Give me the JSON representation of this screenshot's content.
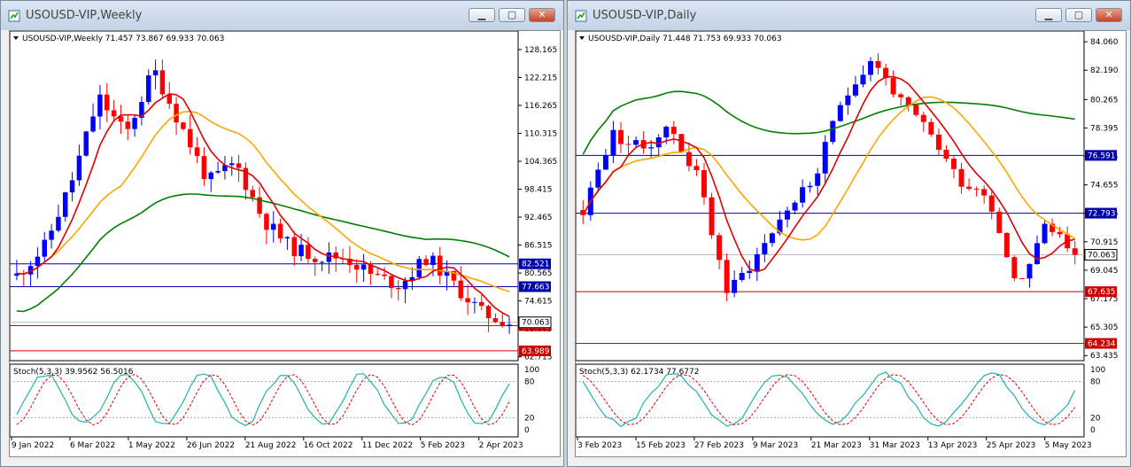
{
  "windows": [
    {
      "title": "USOUSD-VIP,Weekly",
      "info": "USOUSD-VIP,Weekly  71.457 73.867 69.933 70.063",
      "stoch_label": "Stoch(5,3,3) 39.9562 56.5016",
      "price_axis": [
        "128.165",
        "122.215",
        "116.265",
        "110.315",
        "104.365",
        "98.415",
        "92.465",
        "86.515",
        "80.565",
        "74.615",
        "68.665",
        "62.715"
      ],
      "stoch_axis": [
        "100",
        "80",
        "20",
        "0"
      ],
      "hlines": [
        {
          "price": 82.521,
          "color": "#0000aa",
          "label": "82.521"
        },
        {
          "price": 77.663,
          "color": "#0000aa",
          "label": "77.663"
        },
        {
          "price": 69.351,
          "color": "#cc0000",
          "label": "69.351"
        },
        {
          "price": 63.989,
          "color": "#cc0000",
          "label": "63.989"
        }
      ],
      "current_price": {
        "price": 70.063,
        "label": "70.063"
      },
      "date_axis": [
        "9 Jan 2022",
        "6 Mar 2022",
        "1 May 2022",
        "26 Jun 2022",
        "21 Aug 2022",
        "16 Oct 2022",
        "11 Dec 2022",
        "5 Feb 2023",
        "2 Apr 2023"
      ]
    },
    {
      "title": "USOUSD-VIP,Daily",
      "info": "USOUSD-VIP,Daily  71.448 71.753 69.933 70.063",
      "stoch_label": "Stoch(5,3,3) 62.1734 77.6772",
      "price_axis": [
        "84.060",
        "82.190",
        "80.265",
        "78.395",
        "76.525",
        "74.655",
        "72.785",
        "70.915",
        "69.045",
        "67.175",
        "65.305",
        "63.435"
      ],
      "stoch_axis": [
        "100",
        "80",
        "20",
        "0"
      ],
      "hlines": [
        {
          "price": 76.591,
          "color": "#0000aa",
          "label": "76.591"
        },
        {
          "price": 72.793,
          "color": "#0000aa",
          "label": "72.793"
        },
        {
          "price": 67.635,
          "color": "#cc0000",
          "label": "67.635"
        },
        {
          "price": 64.234,
          "color": "#cc0000",
          "label": "64.234"
        }
      ],
      "current_price": {
        "price": 70.063,
        "label": "70.063"
      },
      "date_axis": [
        "3 Feb 2023",
        "15 Feb 2023",
        "27 Feb 2023",
        "9 Mar 2023",
        "21 Mar 2023",
        "31 Mar 2023",
        "13 Apr 2023",
        "25 Apr 2023",
        "5 May 2023"
      ]
    }
  ],
  "colors": {
    "bull": "#0000ff",
    "bear": "#ff0000",
    "ma_fast": "#e00000",
    "ma_mid": "#ffa500",
    "ma_slow": "#008000",
    "stoch_main": "#20b2aa",
    "stoch_signal": "#e00000"
  }
}
